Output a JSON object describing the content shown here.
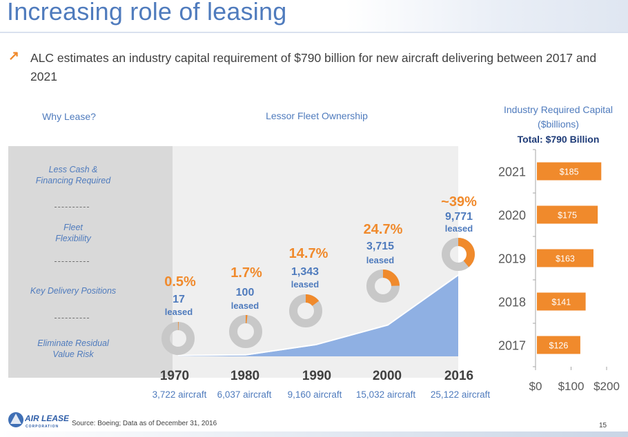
{
  "title": "Increasing role of leasing",
  "bullet": "ALC estimates an industry capital requirement of $790 billion for new aircraft delivering between 2017 and 2021",
  "why_header": "Why Lease?",
  "fleet_header": "Lessor Fleet Ownership",
  "capital_header_line1": "Industry Required Capital",
  "capital_header_line2": "($billions)",
  "capital_total": "Total: $790 Billion",
  "why_items": [
    "Less Cash &",
    "Financing Required",
    "Fleet",
    "Flexibility",
    "Key Delivery Positions",
    "Eliminate Residual",
    "Value Risk"
  ],
  "fleet": [
    {
      "year": "1970",
      "pct_label": "0.5%",
      "pct": 0.5,
      "leased": "17",
      "leased_label": "leased",
      "aircraft": "3,722 aircraft",
      "total": 3722
    },
    {
      "year": "1980",
      "pct_label": "1.7%",
      "pct": 1.7,
      "leased": "100",
      "leased_label": "leased",
      "aircraft": "6,037 aircraft",
      "total": 6037
    },
    {
      "year": "1990",
      "pct_label": "14.7%",
      "pct": 14.7,
      "leased": "1,343",
      "leased_label": "leased",
      "aircraft": "9,160 aircraft",
      "total": 9160
    },
    {
      "year": "2000",
      "pct_label": "24.7%",
      "pct": 24.7,
      "leased": "3,715",
      "leased_label": "leased",
      "aircraft": "15,032 aircraft",
      "total": 15032
    },
    {
      "year": "2016",
      "pct_label": "~39%",
      "pct": 39,
      "leased": "9,771",
      "leased_label": "leased",
      "aircraft": "25,122 aircraft",
      "total": 25122
    }
  ],
  "chart_data": {
    "type": "bar",
    "orientation": "horizontal",
    "title": "Industry Required Capital ($billions)",
    "categories": [
      "2021",
      "2020",
      "2019",
      "2018",
      "2017"
    ],
    "values": [
      185,
      175,
      163,
      141,
      126
    ],
    "value_labels": [
      "$185",
      "$175",
      "$163",
      "$141",
      "$126"
    ],
    "xlim": [
      0,
      200
    ],
    "x_ticks": [
      "$0",
      "$100",
      "$200"
    ],
    "x_tick_values": [
      0,
      100,
      200
    ],
    "bar_color": "#f08a2c"
  },
  "logo_text_main": "AIR LEASE",
  "logo_text_sub": "CORPORATION",
  "source": "Source: Boeing; Data as of December 31, 2016",
  "page_number": "15",
  "colors": {
    "accent_blue": "#4f7bbd",
    "accent_orange": "#f08a2c",
    "area_blue": "#8fb0e3",
    "donut_gray": "#c8c8c8"
  }
}
